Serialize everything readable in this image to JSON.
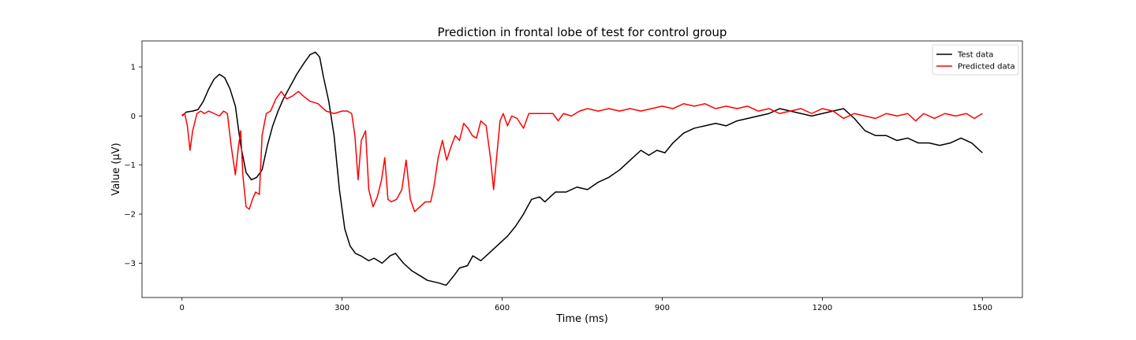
{
  "chart_data": {
    "type": "line",
    "title": "Prediction in frontal lobe of test for control group",
    "xlabel": "Time (ms)",
    "ylabel": "Value (µV)",
    "xlim": [
      -75,
      1575
    ],
    "ylim": [
      -3.7,
      1.53
    ],
    "xticks": [
      0,
      300,
      600,
      900,
      1200,
      1500
    ],
    "xtick_labels": [
      "0",
      "300",
      "600",
      "900",
      "1200",
      "1500"
    ],
    "yticks": [
      1,
      0,
      -1,
      -2,
      -3
    ],
    "ytick_labels": [
      "1",
      "0",
      "−1",
      "−2",
      "−3"
    ],
    "grid": false,
    "legend_position": "top-right",
    "series": [
      {
        "name": "Test data",
        "color": "#000000",
        "points": [
          [
            0,
            0
          ],
          [
            8,
            0.08
          ],
          [
            20,
            0.1
          ],
          [
            30,
            0.13
          ],
          [
            40,
            0.3
          ],
          [
            50,
            0.55
          ],
          [
            60,
            0.75
          ],
          [
            70,
            0.85
          ],
          [
            80,
            0.78
          ],
          [
            90,
            0.55
          ],
          [
            100,
            0.2
          ],
          [
            110,
            -0.6
          ],
          [
            120,
            -1.15
          ],
          [
            130,
            -1.3
          ],
          [
            140,
            -1.25
          ],
          [
            150,
            -1.1
          ],
          [
            160,
            -0.6
          ],
          [
            170,
            -0.2
          ],
          [
            180,
            0.1
          ],
          [
            190,
            0.35
          ],
          [
            200,
            0.55
          ],
          [
            215,
            0.85
          ],
          [
            230,
            1.1
          ],
          [
            240,
            1.25
          ],
          [
            250,
            1.3
          ],
          [
            258,
            1.2
          ],
          [
            265,
            0.8
          ],
          [
            275,
            0.3
          ],
          [
            285,
            -0.4
          ],
          [
            295,
            -1.5
          ],
          [
            305,
            -2.3
          ],
          [
            315,
            -2.65
          ],
          [
            325,
            -2.8
          ],
          [
            335,
            -2.85
          ],
          [
            350,
            -2.95
          ],
          [
            360,
            -2.9
          ],
          [
            375,
            -3.0
          ],
          [
            390,
            -2.85
          ],
          [
            400,
            -2.8
          ],
          [
            415,
            -3.0
          ],
          [
            430,
            -3.15
          ],
          [
            445,
            -3.25
          ],
          [
            460,
            -3.35
          ],
          [
            480,
            -3.4
          ],
          [
            495,
            -3.45
          ],
          [
            510,
            -3.25
          ],
          [
            520,
            -3.1
          ],
          [
            535,
            -3.05
          ],
          [
            545,
            -2.85
          ],
          [
            560,
            -2.95
          ],
          [
            575,
            -2.8
          ],
          [
            590,
            -2.65
          ],
          [
            610,
            -2.45
          ],
          [
            625,
            -2.25
          ],
          [
            640,
            -2.0
          ],
          [
            655,
            -1.7
          ],
          [
            670,
            -1.65
          ],
          [
            680,
            -1.75
          ],
          [
            700,
            -1.55
          ],
          [
            720,
            -1.55
          ],
          [
            740,
            -1.45
          ],
          [
            760,
            -1.5
          ],
          [
            780,
            -1.35
          ],
          [
            800,
            -1.25
          ],
          [
            820,
            -1.1
          ],
          [
            840,
            -0.9
          ],
          [
            860,
            -0.7
          ],
          [
            875,
            -0.8
          ],
          [
            890,
            -0.7
          ],
          [
            905,
            -0.75
          ],
          [
            920,
            -0.55
          ],
          [
            940,
            -0.35
          ],
          [
            960,
            -0.25
          ],
          [
            980,
            -0.2
          ],
          [
            1000,
            -0.15
          ],
          [
            1020,
            -0.2
          ],
          [
            1040,
            -0.1
          ],
          [
            1060,
            -0.05
          ],
          [
            1080,
            0.0
          ],
          [
            1100,
            0.05
          ],
          [
            1120,
            0.15
          ],
          [
            1140,
            0.1
          ],
          [
            1160,
            0.05
          ],
          [
            1180,
            0.0
          ],
          [
            1200,
            0.05
          ],
          [
            1220,
            0.1
          ],
          [
            1240,
            0.15
          ],
          [
            1260,
            -0.05
          ],
          [
            1280,
            -0.3
          ],
          [
            1300,
            -0.4
          ],
          [
            1320,
            -0.4
          ],
          [
            1340,
            -0.5
          ],
          [
            1360,
            -0.45
          ],
          [
            1380,
            -0.55
          ],
          [
            1400,
            -0.55
          ],
          [
            1420,
            -0.6
          ],
          [
            1440,
            -0.55
          ],
          [
            1460,
            -0.45
          ],
          [
            1480,
            -0.55
          ],
          [
            1500,
            -0.75
          ]
        ]
      },
      {
        "name": "Predicted data",
        "color": "#ff0000",
        "points": [
          [
            0,
            0.02
          ],
          [
            5,
            0.05
          ],
          [
            10,
            -0.2
          ],
          [
            15,
            -0.7
          ],
          [
            20,
            -0.3
          ],
          [
            28,
            0.05
          ],
          [
            35,
            0.1
          ],
          [
            42,
            0.05
          ],
          [
            50,
            0.1
          ],
          [
            60,
            0.05
          ],
          [
            70,
            0.0
          ],
          [
            78,
            0.1
          ],
          [
            85,
            0.05
          ],
          [
            92,
            -0.6
          ],
          [
            100,
            -1.2
          ],
          [
            106,
            -0.6
          ],
          [
            110,
            -0.3
          ],
          [
            114,
            -1.2
          ],
          [
            120,
            -1.85
          ],
          [
            126,
            -1.9
          ],
          [
            132,
            -1.7
          ],
          [
            138,
            -1.55
          ],
          [
            145,
            -1.6
          ],
          [
            150,
            -0.4
          ],
          [
            158,
            0.05
          ],
          [
            166,
            0.1
          ],
          [
            176,
            0.35
          ],
          [
            186,
            0.5
          ],
          [
            196,
            0.35
          ],
          [
            206,
            0.4
          ],
          [
            218,
            0.5
          ],
          [
            228,
            0.4
          ],
          [
            240,
            0.3
          ],
          [
            255,
            0.25
          ],
          [
            270,
            0.1
          ],
          [
            285,
            0.05
          ],
          [
            300,
            0.1
          ],
          [
            310,
            0.1
          ],
          [
            318,
            0.05
          ],
          [
            324,
            -0.4
          ],
          [
            330,
            -1.3
          ],
          [
            336,
            -0.5
          ],
          [
            344,
            -0.3
          ],
          [
            350,
            -1.5
          ],
          [
            358,
            -1.85
          ],
          [
            366,
            -1.65
          ],
          [
            374,
            -1.3
          ],
          [
            380,
            -0.85
          ],
          [
            386,
            -1.7
          ],
          [
            392,
            -1.75
          ],
          [
            402,
            -1.7
          ],
          [
            412,
            -1.5
          ],
          [
            420,
            -0.9
          ],
          [
            428,
            -1.7
          ],
          [
            436,
            -1.95
          ],
          [
            446,
            -1.85
          ],
          [
            456,
            -1.75
          ],
          [
            466,
            -1.75
          ],
          [
            472,
            -1.45
          ],
          [
            480,
            -0.85
          ],
          [
            488,
            -0.5
          ],
          [
            496,
            -0.9
          ],
          [
            505,
            -0.6
          ],
          [
            512,
            -0.4
          ],
          [
            520,
            -0.5
          ],
          [
            528,
            -0.15
          ],
          [
            536,
            -0.25
          ],
          [
            544,
            -0.4
          ],
          [
            552,
            -0.45
          ],
          [
            560,
            -0.1
          ],
          [
            570,
            -0.2
          ],
          [
            578,
            -0.85
          ],
          [
            584,
            -1.5
          ],
          [
            590,
            -0.8
          ],
          [
            596,
            -0.1
          ],
          [
            602,
            0.05
          ],
          [
            610,
            -0.2
          ],
          [
            618,
            0.0
          ],
          [
            628,
            -0.05
          ],
          [
            640,
            -0.25
          ],
          [
            650,
            0.05
          ],
          [
            665,
            0.05
          ],
          [
            680,
            0.05
          ],
          [
            695,
            0.05
          ],
          [
            705,
            -0.1
          ],
          [
            715,
            0.05
          ],
          [
            730,
            0.0
          ],
          [
            745,
            0.1
          ],
          [
            760,
            0.15
          ],
          [
            780,
            0.1
          ],
          [
            800,
            0.15
          ],
          [
            820,
            0.1
          ],
          [
            840,
            0.15
          ],
          [
            860,
            0.1
          ],
          [
            880,
            0.15
          ],
          [
            900,
            0.2
          ],
          [
            920,
            0.15
          ],
          [
            940,
            0.25
          ],
          [
            960,
            0.2
          ],
          [
            980,
            0.25
          ],
          [
            1000,
            0.15
          ],
          [
            1020,
            0.2
          ],
          [
            1040,
            0.15
          ],
          [
            1060,
            0.2
          ],
          [
            1080,
            0.1
          ],
          [
            1100,
            0.15
          ],
          [
            1120,
            0.05
          ],
          [
            1140,
            0.1
          ],
          [
            1160,
            0.15
          ],
          [
            1180,
            0.05
          ],
          [
            1200,
            0.15
          ],
          [
            1220,
            0.1
          ],
          [
            1240,
            -0.05
          ],
          [
            1260,
            0.05
          ],
          [
            1280,
            0.0
          ],
          [
            1300,
            -0.05
          ],
          [
            1320,
            0.05
          ],
          [
            1340,
            0.0
          ],
          [
            1360,
            0.05
          ],
          [
            1375,
            -0.1
          ],
          [
            1390,
            0.05
          ],
          [
            1410,
            -0.05
          ],
          [
            1430,
            0.05
          ],
          [
            1450,
            0.0
          ],
          [
            1470,
            0.05
          ],
          [
            1485,
            -0.05
          ],
          [
            1500,
            0.05
          ]
        ]
      }
    ]
  }
}
